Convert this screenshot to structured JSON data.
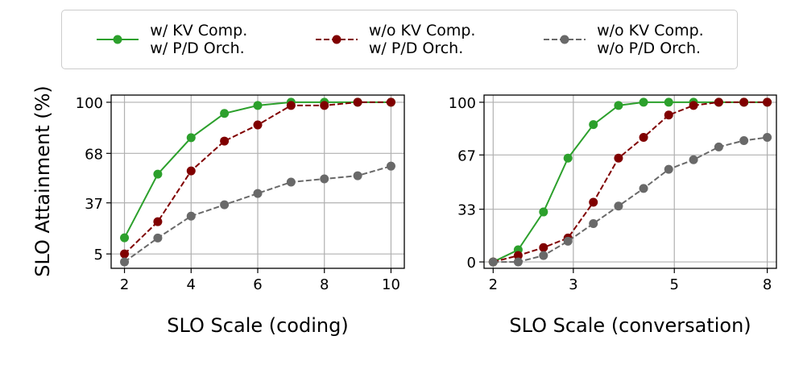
{
  "chart_data": [
    {
      "type": "line",
      "y_label": "SLO Attainment (%)",
      "x_label": "SLO Scale (coding)",
      "x": [
        2,
        3,
        4,
        5,
        6,
        7,
        8,
        9,
        10
      ],
      "xlim": [
        1.6,
        10.4
      ],
      "xticks": [
        2,
        4,
        6,
        8,
        10
      ],
      "ylim": [
        -4,
        104.5
      ],
      "yticks": [
        5,
        37,
        68,
        100
      ],
      "grid": true,
      "series": [
        {
          "name": "w/ KV Comp.\nw/ P/D Orch.",
          "color": "#2ca02c",
          "linestyle": "solid",
          "values": [
            15.1,
            55,
            77.8,
            93,
            98,
            100,
            100,
            100,
            100
          ]
        },
        {
          "name": "w/o KV Comp.\nw/ P/D Orch.",
          "color": "#800000",
          "linestyle": "dashed",
          "values": [
            5,
            25.2,
            57,
            75.7,
            85.8,
            98,
            98,
            100,
            100
          ]
        },
        {
          "name": "w/o KV Comp.\nw/o P/D Orch.",
          "color": "#696969",
          "linestyle": "dashed",
          "values": [
            0,
            15,
            28.7,
            35.8,
            42.9,
            50,
            52,
            54,
            60
          ]
        }
      ]
    },
    {
      "type": "line",
      "x_label": "SLO Scale (conversation)",
      "xscale": "log",
      "x": [
        2,
        2.27,
        2.58,
        2.92,
        3.32,
        3.77,
        4.28,
        4.86,
        5.51,
        6.26,
        7.11,
        8
      ],
      "xlim": [
        1.91,
        8.38
      ],
      "xticks": [
        2,
        3,
        5,
        8
      ],
      "ylim": [
        -4,
        104.5
      ],
      "yticks": [
        0,
        33,
        67,
        100
      ],
      "grid": true,
      "series": [
        {
          "color": "#2ca02c",
          "linestyle": "solid",
          "values": [
            0,
            7.6,
            31.3,
            65,
            86,
            98,
            100,
            100,
            100,
            100,
            100,
            100
          ]
        },
        {
          "color": "#800000",
          "linestyle": "dashed",
          "values": [
            0,
            4,
            9,
            15,
            37.4,
            65,
            78,
            92,
            98,
            100,
            100,
            100
          ]
        },
        {
          "color": "#696969",
          "linestyle": "dashed",
          "values": [
            0,
            0,
            4,
            13,
            24,
            35,
            46,
            58,
            64,
            72,
            76,
            78
          ]
        }
      ]
    }
  ]
}
